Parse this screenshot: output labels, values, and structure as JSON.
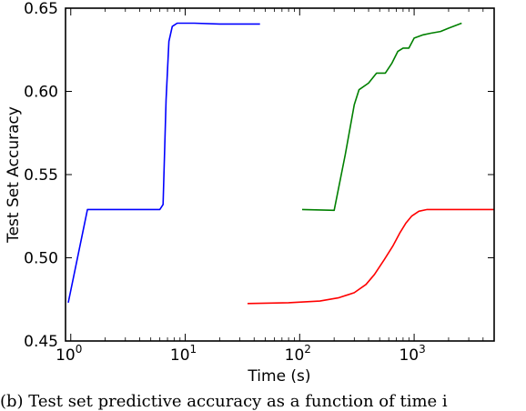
{
  "chart_data": {
    "type": "line",
    "xlabel": "Time (s)",
    "ylabel": "Test Set Accuracy",
    "xscale": "log",
    "xlim": [
      0.9,
      5000
    ],
    "ylim": [
      0.45,
      0.65
    ],
    "grid": false,
    "x_ticks": [
      {
        "value": 1,
        "base": "10",
        "exp": "0"
      },
      {
        "value": 10,
        "base": "10",
        "exp": "1"
      },
      {
        "value": 100,
        "base": "10",
        "exp": "2"
      },
      {
        "value": 1000,
        "base": "10",
        "exp": "3"
      }
    ],
    "y_ticks": [
      {
        "value": 0.45,
        "label": "0.45"
      },
      {
        "value": 0.5,
        "label": "0.50"
      },
      {
        "value": 0.55,
        "label": "0.55"
      },
      {
        "value": 0.6,
        "label": "0.60"
      },
      {
        "value": 0.65,
        "label": "0.65"
      }
    ],
    "series": [
      {
        "color": "#0000ff",
        "points": [
          [
            0.95,
            0.473
          ],
          [
            1.4,
            0.529
          ],
          [
            6.0,
            0.529
          ],
          [
            6.4,
            0.532
          ],
          [
            6.8,
            0.595
          ],
          [
            7.2,
            0.63
          ],
          [
            7.7,
            0.639
          ],
          [
            8.5,
            0.641
          ],
          [
            12,
            0.641
          ],
          [
            20,
            0.6405
          ],
          [
            45,
            0.6405
          ]
        ]
      },
      {
        "color": "#008000",
        "points": [
          [
            105,
            0.529
          ],
          [
            200,
            0.5285
          ],
          [
            250,
            0.562
          ],
          [
            300,
            0.592
          ],
          [
            330,
            0.601
          ],
          [
            400,
            0.605
          ],
          [
            470,
            0.611
          ],
          [
            560,
            0.611
          ],
          [
            640,
            0.617
          ],
          [
            720,
            0.624
          ],
          [
            800,
            0.626
          ],
          [
            900,
            0.626
          ],
          [
            1000,
            0.632
          ],
          [
            1200,
            0.634
          ],
          [
            1400,
            0.635
          ],
          [
            1700,
            0.636
          ],
          [
            2000,
            0.638
          ],
          [
            2600,
            0.641
          ]
        ]
      },
      {
        "color": "#ff0000",
        "points": [
          [
            35,
            0.4725
          ],
          [
            80,
            0.473
          ],
          [
            150,
            0.474
          ],
          [
            220,
            0.476
          ],
          [
            300,
            0.479
          ],
          [
            380,
            0.484
          ],
          [
            450,
            0.49
          ],
          [
            550,
            0.499
          ],
          [
            650,
            0.507
          ],
          [
            750,
            0.515
          ],
          [
            850,
            0.521
          ],
          [
            950,
            0.525
          ],
          [
            1100,
            0.528
          ],
          [
            1300,
            0.529
          ],
          [
            2000,
            0.529
          ],
          [
            5000,
            0.529
          ]
        ]
      }
    ]
  },
  "caption": "(b) Test set predictive accuracy as a function of time i"
}
